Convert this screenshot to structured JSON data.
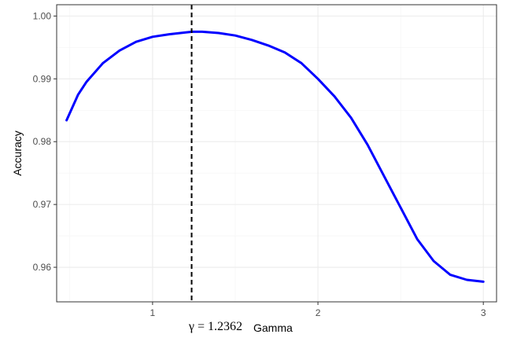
{
  "chart_data": {
    "type": "line",
    "xlabel": "Gamma",
    "ylabel": "Accuracy",
    "xlim": [
      0.42,
      3.08
    ],
    "ylim": [
      0.9545,
      1.0018
    ],
    "x_ticks": [
      1,
      2,
      3
    ],
    "x_tick_labels": [
      "1",
      "2",
      "3"
    ],
    "y_ticks": [
      0.96,
      0.97,
      0.98,
      0.99,
      1.0
    ],
    "y_tick_labels": [
      "0.96",
      "0.97",
      "0.98",
      "0.99",
      "1.00"
    ],
    "grid": true,
    "series": [
      {
        "color": "#0000ff",
        "x": [
          0.48,
          0.55,
          0.6,
          0.7,
          0.8,
          0.9,
          1.0,
          1.1,
          1.2,
          1.24,
          1.3,
          1.4,
          1.5,
          1.6,
          1.7,
          1.8,
          1.9,
          2.0,
          2.1,
          2.2,
          2.3,
          2.4,
          2.5,
          2.6,
          2.7,
          2.8,
          2.9,
          3.0
        ],
        "y": [
          0.9834,
          0.9875,
          0.9895,
          0.9925,
          0.9945,
          0.9959,
          0.9967,
          0.9971,
          0.9974,
          0.9975,
          0.9975,
          0.9973,
          0.9969,
          0.9962,
          0.9953,
          0.9942,
          0.9925,
          0.99,
          0.9872,
          0.9838,
          0.9795,
          0.9745,
          0.9695,
          0.9645,
          0.961,
          0.9588,
          0.958,
          0.9577
        ]
      }
    ],
    "vline": {
      "x": 1.2362,
      "style": "dashed",
      "color": "#000000"
    },
    "annotation": "γ = 1.2362"
  }
}
